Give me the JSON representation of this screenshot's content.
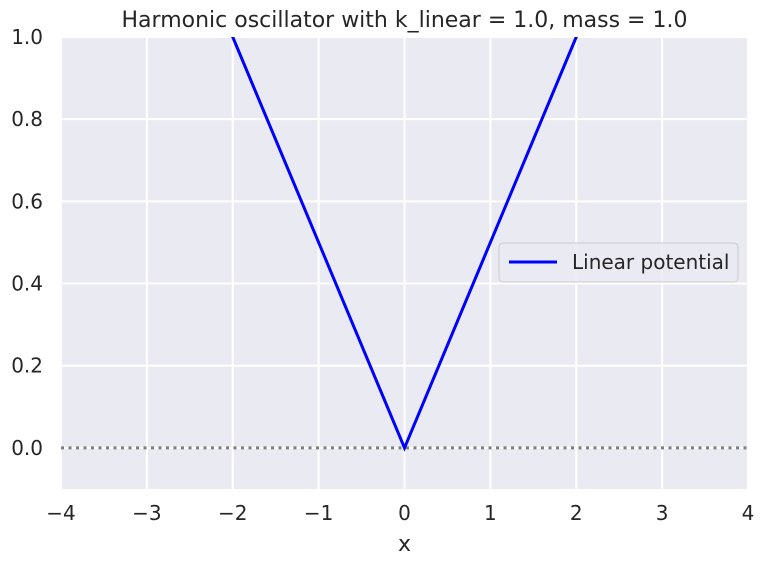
{
  "chart_data": {
    "type": "line",
    "title": "Harmonic oscillator with k_linear = 1.0, mass = 1.0",
    "xlabel": "x",
    "ylabel": "",
    "xlim": [
      -4,
      4
    ],
    "ylim": [
      -0.1,
      1.0
    ],
    "xticks": [
      -4,
      -3,
      -2,
      -1,
      0,
      1,
      2,
      3,
      4
    ],
    "xtick_labels": [
      "−4",
      "−3",
      "−2",
      "−1",
      "0",
      "1",
      "2",
      "3",
      "4"
    ],
    "yticks": [
      0.0,
      0.2,
      0.4,
      0.6,
      0.8,
      1.0
    ],
    "ytick_labels": [
      "0.0",
      "0.2",
      "0.4",
      "0.6",
      "0.8",
      "1.0"
    ],
    "grid": true,
    "series": [
      {
        "name": "Linear potential",
        "color": "#0000ff",
        "x": [
          -4,
          -2,
          0,
          2,
          4
        ],
        "y": [
          2.0,
          1.0,
          0.0,
          1.0,
          2.0
        ]
      }
    ],
    "reference_line": {
      "y": 0.0,
      "style": "dotted",
      "color": "#7f7f7f"
    },
    "legend_position": "center-right",
    "background_color": "#eaeaf2"
  }
}
